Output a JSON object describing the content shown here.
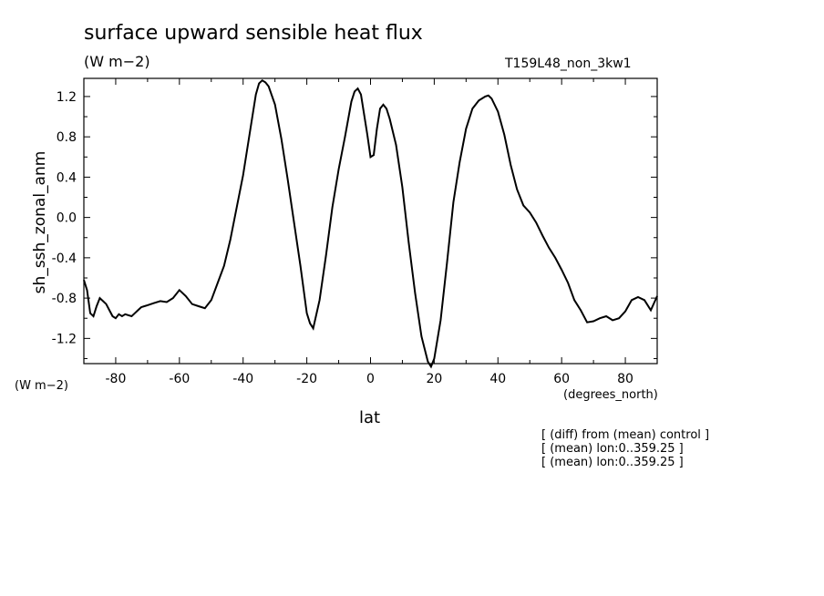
{
  "chart_data": {
    "type": "line",
    "title": "surface upward sensible heat flux",
    "units": "(W m−2)",
    "case_label": "T159L48_non_3kw1",
    "xlabel": "lat",
    "x_units": "(degrees_north)",
    "ylabel": "sh_ssh_zonal_anm",
    "y_units": "(W m−2)",
    "xlim": [
      -90,
      90
    ],
    "ylim": [
      -1.45,
      1.38
    ],
    "xticks": [
      -80,
      -60,
      -40,
      -20,
      0,
      20,
      40,
      60,
      80
    ],
    "xtick_labels": [
      "-80",
      "-60",
      "-40",
      "-20",
      "0",
      "20",
      "40",
      "60",
      "80"
    ],
    "yticks": [
      -1.2,
      -0.8,
      -0.4,
      0.0,
      0.4,
      0.8,
      1.2
    ],
    "ytick_labels": [
      "-1.2",
      "-0.8",
      "-0.4",
      "0.0",
      "0.4",
      "0.8",
      "1.2"
    ],
    "grid": false,
    "notes": [
      "[ (diff) from (mean) control ]",
      "[ (mean) lon:0..359.25 ]",
      "[ (mean) lon:0..359.25 ]"
    ],
    "series": [
      {
        "x": [
          -90,
          -89,
          -88,
          -87,
          -86,
          -85,
          -84,
          -83,
          -82,
          -81,
          -80,
          -79,
          -78,
          -77,
          -76,
          -75,
          -74,
          -73,
          -72,
          -71,
          -70,
          -68,
          -66,
          -64,
          -62,
          -60,
          -58,
          -56,
          -54,
          -52,
          -50,
          -48,
          -46,
          -44,
          -42,
          -40,
          -38,
          -36,
          -35,
          -34,
          -33,
          -32,
          -30,
          -28,
          -26,
          -24,
          -22,
          -20,
          -19,
          -18,
          -16,
          -14,
          -12,
          -10,
          -8,
          -6,
          -5,
          -4,
          -3,
          -2,
          -1,
          0,
          1,
          2,
          3,
          4,
          5,
          6,
          8,
          10,
          12,
          14,
          16,
          18,
          19,
          20,
          22,
          24,
          26,
          28,
          30,
          32,
          34,
          36,
          37,
          38,
          40,
          42,
          44,
          46,
          48,
          50,
          52,
          54,
          56,
          58,
          60,
          62,
          64,
          66,
          68,
          70,
          72,
          74,
          76,
          78,
          80,
          82,
          84,
          86,
          88,
          90
        ],
        "values": [
          -0.62,
          -0.72,
          -0.95,
          -0.98,
          -0.88,
          -0.8,
          -0.83,
          -0.86,
          -0.92,
          -0.98,
          -1.0,
          -0.96,
          -0.98,
          -0.96,
          -0.97,
          -0.98,
          -0.95,
          -0.92,
          -0.89,
          -0.88,
          -0.87,
          -0.85,
          -0.83,
          -0.84,
          -0.8,
          -0.72,
          -0.78,
          -0.86,
          -0.88,
          -0.9,
          -0.82,
          -0.65,
          -0.48,
          -0.22,
          0.1,
          0.42,
          0.82,
          1.22,
          1.33,
          1.36,
          1.34,
          1.3,
          1.12,
          0.78,
          0.38,
          -0.05,
          -0.48,
          -0.95,
          -1.05,
          -1.1,
          -0.82,
          -0.38,
          0.1,
          0.48,
          0.8,
          1.15,
          1.25,
          1.28,
          1.22,
          1.02,
          0.82,
          0.6,
          0.62,
          0.88,
          1.08,
          1.12,
          1.08,
          0.98,
          0.72,
          0.3,
          -0.25,
          -0.75,
          -1.18,
          -1.43,
          -1.48,
          -1.4,
          -1.02,
          -0.45,
          0.15,
          0.55,
          0.88,
          1.08,
          1.16,
          1.2,
          1.21,
          1.18,
          1.05,
          0.82,
          0.52,
          0.28,
          0.12,
          0.05,
          -0.05,
          -0.18,
          -0.3,
          -0.4,
          -0.52,
          -0.65,
          -0.82,
          -0.92,
          -1.04,
          -1.03,
          -1.0,
          -0.98,
          -1.02,
          -1.0,
          -0.93,
          -0.82,
          -0.79,
          -0.82,
          -0.92,
          -0.78
        ]
      }
    ]
  }
}
